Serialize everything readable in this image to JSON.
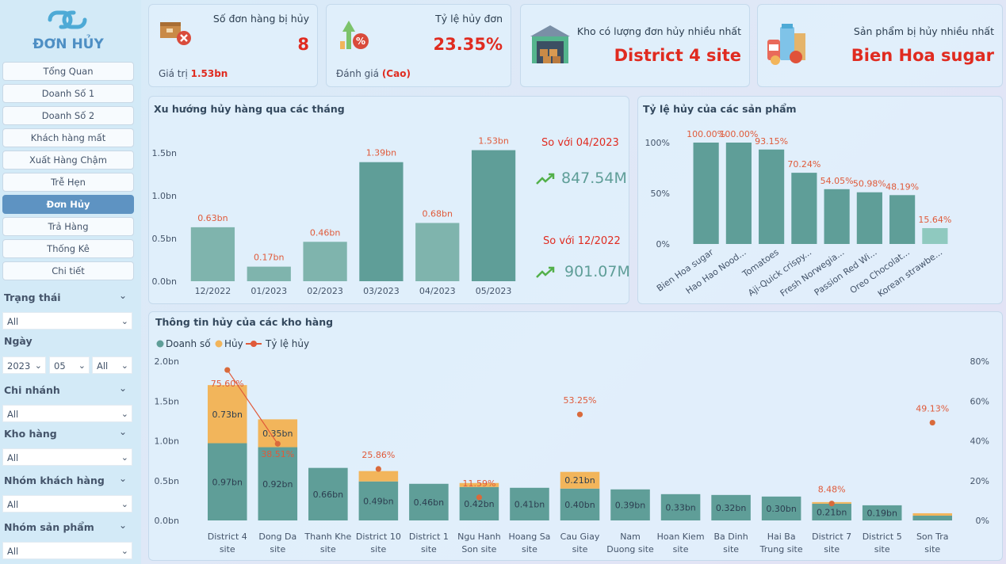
{
  "app": {
    "title": "ĐƠN HỦY"
  },
  "nav": [
    {
      "label": "Tổng Quan",
      "active": false
    },
    {
      "label": "Doanh Số 1",
      "active": false
    },
    {
      "label": "Doanh Số 2",
      "active": false
    },
    {
      "label": "Khách hàng mất",
      "active": false
    },
    {
      "label": "Xuất Hàng Chậm",
      "active": false
    },
    {
      "label": "Trễ Hẹn",
      "active": false
    },
    {
      "label": "Đơn Hủy",
      "active": true
    },
    {
      "label": "Trả Hàng",
      "active": false
    },
    {
      "label": "Thống Kê",
      "active": false
    },
    {
      "label": "Chi tiết",
      "active": false
    }
  ],
  "filters": {
    "trang_thai": {
      "label": "Trạng thái",
      "value": "All"
    },
    "ngay": {
      "label": "Ngày",
      "year": "2023",
      "month": "05",
      "day": "All"
    },
    "chi_nhanh": {
      "label": "Chi nhánh",
      "value": "All"
    },
    "kho_hang": {
      "label": "Kho hàng",
      "value": "All"
    },
    "nhom_khach_hang": {
      "label": "Nhóm khách hàng",
      "value": "All"
    },
    "nhom_san_pham": {
      "label": "Nhóm sản phẩm",
      "value": "All"
    }
  },
  "kpis": {
    "orders": {
      "title": "Số đơn hàng bị hủy",
      "value": "8",
      "sub_label": "Giá trị",
      "sub_value": "1.53bn"
    },
    "rate": {
      "title": "Tỷ lệ hủy đơn",
      "value": "23.35%",
      "sub_label": "Đánh giá",
      "sub_value": "(Cao)"
    },
    "warehouse": {
      "title": "Kho có lượng đơn hủy nhiều nhất",
      "value": "District 4 site"
    },
    "product": {
      "title": "Sản phẩm bị hủy nhiều nhất",
      "value": "Bien Hoa sugar"
    }
  },
  "comparison": {
    "vs1_label": "So với 04/2023",
    "vs1_value": "847.54M",
    "vs2_label": "So với 12/2022",
    "vs2_value": "901.07M"
  },
  "colors": {
    "teal": "#5f9e98",
    "teal_light": "#7fb4ad",
    "orange": "#f2b55b",
    "red": "#e05a3a",
    "accent_red": "#e02b20"
  },
  "chart_data": [
    {
      "type": "bar",
      "title": "Xu hướng hủy hàng qua các tháng",
      "categories": [
        "12/2022",
        "01/2023",
        "02/2023",
        "03/2023",
        "04/2023",
        "05/2023"
      ],
      "values": [
        0.63,
        0.17,
        0.46,
        1.39,
        0.68,
        1.53
      ],
      "labels": [
        "0.63bn",
        "0.17bn",
        "0.46bn",
        "1.39bn",
        "0.68bn",
        "1.53bn"
      ],
      "yticks": [
        "0.0bn",
        "0.5bn",
        "1.0bn",
        "1.5bn"
      ],
      "ylim": [
        0,
        1.6
      ]
    },
    {
      "type": "bar",
      "title": "Tỷ lệ hủy của các sản phẩm",
      "categories": [
        "Bien Hoa sugar",
        "Hao Hao Nood...",
        "Tomatoes",
        "Aji-Quick crispy...",
        "Fresh Norwegia...",
        "Passion Red Wi...",
        "Oreo Chocolat...",
        "Korean strawbe..."
      ],
      "values": [
        100.0,
        100.0,
        93.15,
        70.24,
        54.05,
        50.98,
        48.19,
        15.64
      ],
      "labels": [
        "100.00%",
        "100.00%",
        "93.15%",
        "70.24%",
        "54.05%",
        "50.98%",
        "48.19%",
        "15.64%"
      ],
      "yticks": [
        "0%",
        "50%",
        "100%"
      ],
      "ylim": [
        0,
        100
      ]
    },
    {
      "type": "bar",
      "title": "Thông tin hủy của các kho hàng",
      "legend": [
        "Doanh số",
        "Hủy",
        "Tỷ lệ hủy"
      ],
      "categories": [
        "District 4 site",
        "Dong Da site",
        "Thanh Khe site",
        "District 10 site",
        "District 1 site",
        "Ngu Hanh Son site",
        "Hoang Sa site",
        "Cau Giay site",
        "Nam Duong site",
        "Hoan Kiem site",
        "Ba Dinh site",
        "Hai Ba Trung site",
        "District 7 site",
        "District 5 site",
        "Son Tra site"
      ],
      "category_lines": [
        [
          "District 4",
          "site"
        ],
        [
          "Dong Da",
          "site"
        ],
        [
          "Thanh Khe",
          "site"
        ],
        [
          "District 10",
          "site"
        ],
        [
          "District 1",
          "site"
        ],
        [
          "Ngu Hanh",
          "Son site"
        ],
        [
          "Hoang Sa",
          "site"
        ],
        [
          "Cau Giay",
          "site"
        ],
        [
          "Nam",
          "Duong site"
        ],
        [
          "Hoan Kiem",
          "site"
        ],
        [
          "Ba Dinh",
          "site"
        ],
        [
          "Hai Ba",
          "Trung site"
        ],
        [
          "District 7",
          "site"
        ],
        [
          "District 5",
          "site"
        ],
        [
          "Son Tra",
          "site"
        ]
      ],
      "series": [
        {
          "name": "Doanh số",
          "values": [
            0.97,
            0.92,
            0.66,
            0.49,
            0.46,
            0.42,
            0.41,
            0.4,
            0.39,
            0.33,
            0.32,
            0.3,
            0.21,
            0.19,
            0.06
          ],
          "labels": [
            "0.97bn",
            "0.92bn",
            "0.66bn",
            "0.49bn",
            "0.46bn",
            "0.42bn",
            "0.41bn",
            "0.40bn",
            "0.39bn",
            "0.33bn",
            "0.32bn",
            "0.30bn",
            "0.21bn",
            "0.19bn",
            ""
          ]
        },
        {
          "name": "Hủy",
          "values": [
            0.73,
            0.35,
            0,
            0.13,
            0,
            0.05,
            0,
            0.21,
            0,
            0,
            0,
            0,
            0.02,
            0,
            0.03
          ],
          "labels": [
            "0.73bn",
            "0.35bn",
            "",
            "",
            "",
            "",
            "",
            "0.21bn",
            "",
            "",
            "",
            "",
            "",
            "",
            ""
          ]
        },
        {
          "name": "Tỷ lệ hủy",
          "values": [
            75.6,
            38.51,
            null,
            25.86,
            null,
            11.59,
            null,
            53.25,
            null,
            null,
            null,
            null,
            8.48,
            null,
            49.13
          ],
          "labels": [
            "75.60%",
            "38.51%",
            "",
            "25.86%",
            "",
            "11.59%",
            "",
            "53.25%",
            "",
            "",
            "",
            "",
            "8.48%",
            "",
            "49.13%"
          ]
        }
      ],
      "yticks_left": [
        "0.0bn",
        "0.5bn",
        "1.0bn",
        "1.5bn",
        "2.0bn"
      ],
      "yticks_right": [
        "0%",
        "20%",
        "40%",
        "60%",
        "80%"
      ],
      "ylim": [
        0,
        2.0
      ],
      "y2lim": [
        0,
        80
      ]
    }
  ]
}
